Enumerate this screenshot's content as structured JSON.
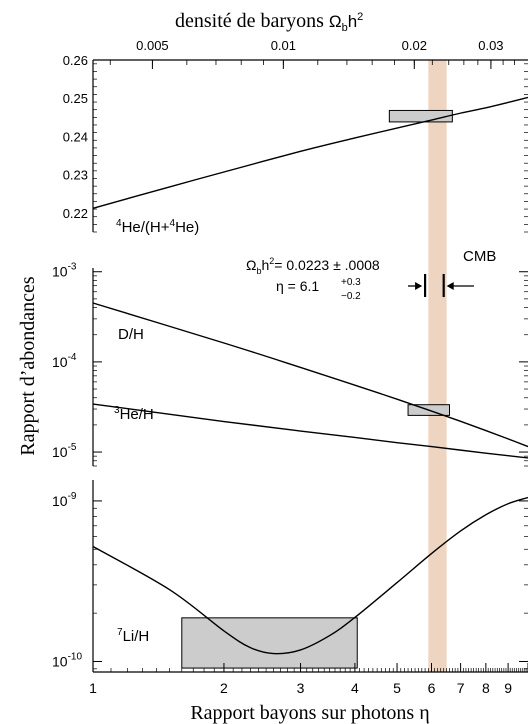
{
  "chart_data": {
    "type": "line",
    "top_axis": {
      "label_prefix": "densité de baryons",
      "label_symbol": "Ω",
      "label_sub": "b",
      "label_h": "h",
      "label_sup": "2",
      "ticks": [
        "0.005",
        "0.01",
        "0.02",
        "0.03"
      ],
      "tick_values": [
        0.005,
        0.01,
        0.02,
        0.03
      ]
    },
    "x_axis": {
      "label": "Rapport bayons sur photons η",
      "scale": "log",
      "range": [
        1,
        10
      ],
      "tick_values": [
        1,
        2,
        3,
        4,
        5,
        6,
        7,
        8,
        9
      ],
      "tick_labels": [
        "1",
        "2",
        "3",
        "4",
        "5",
        "6",
        "7",
        "8",
        "9"
      ]
    },
    "y_axis_label": "Rapport d’abondances",
    "cmb_band": {
      "range": [
        5.9,
        6.5
      ],
      "color": "#eed5c1"
    },
    "cmb_label": "CMB",
    "annotation": {
      "omega_text": "h",
      "omega_value": "= 0.0223 ± .0008",
      "eta_text": "η = 6.1",
      "eta_plus": "+0.3",
      "eta_minus": "−0.2"
    },
    "panels": [
      {
        "name": "helium-4",
        "scale": "linear",
        "ylim": [
          0.215,
          0.26
        ],
        "tick_values": [
          0.22,
          0.23,
          0.24,
          0.25,
          0.26
        ],
        "tick_labels": [
          "0.22",
          "0.23",
          "0.24",
          "0.25",
          "0.26"
        ],
        "series": [
          {
            "label_sup1": "4",
            "label_mid1": "He/(H+",
            "label_sup2": "4",
            "label_end": "He)",
            "x": [
              1,
              1.5,
              2,
              3,
              4,
              5,
              6,
              7,
              8,
              9,
              10
            ],
            "y": [
              0.2212,
              0.2268,
              0.2307,
              0.2361,
              0.2396,
              0.2422,
              0.2443,
              0.2461,
              0.2475,
              0.2489,
              0.2502
            ]
          }
        ],
        "obs_box": {
          "x": [
            4.8,
            6.7
          ],
          "y": [
            0.2438,
            0.2468
          ]
        }
      },
      {
        "name": "deuterium-helium-3",
        "scale": "log",
        "ylim": [
          7e-06,
          0.0011
        ],
        "tick_values": [
          1e-05,
          0.0001,
          0.001
        ],
        "tick_labels_base": [
          "10",
          "10",
          "10"
        ],
        "tick_labels_exp": [
          "-5",
          "-4",
          "-3"
        ],
        "series": [
          {
            "label": "D/H",
            "x": [
              1,
              2,
              3,
              4,
              5,
              6,
              7,
              8,
              9,
              10
            ],
            "y": [
              0.00045,
              0.000162,
              8.68e-05,
              5.52e-05,
              3.86e-05,
              2.85e-05,
              2.19e-05,
              1.73e-05,
              1.4e-05,
              1.15e-05
            ]
          },
          {
            "label_sup": "3",
            "label": "He/H",
            "x": [
              1,
              2,
              3,
              4,
              5,
              6,
              7,
              8,
              9,
              10
            ],
            "y": [
              3.41e-05,
              2.18e-05,
              1.71e-05,
              1.45e-05,
              1.27e-05,
              1.15e-05,
              1.05e-05,
              9.7e-06,
              9.1e-06,
              8.6e-06
            ]
          }
        ],
        "obs_box": {
          "x": [
            5.3,
            6.6
          ],
          "y": [
            2.55e-05,
            3.35e-05
          ]
        }
      },
      {
        "name": "lithium-7",
        "scale": "log",
        "ylim": [
          8.6e-11,
          1.35e-09
        ],
        "tick_values": [
          1e-10,
          1e-09
        ],
        "tick_labels_base": [
          "10",
          "10"
        ],
        "tick_labels_exp": [
          "-10",
          "-9"
        ],
        "series": [
          {
            "label_sup": "7",
            "label": "Li/H",
            "x": [
              1,
              1.5,
              2,
              2.3,
              2.6,
              3,
              3.5,
              4,
              5,
              6,
              7,
              8,
              9,
              10
            ],
            "y": [
              5.2e-10,
              2.8e-10,
              1.55e-10,
              1.22e-10,
              1.12e-10,
              1.18e-10,
              1.45e-10,
              1.88e-10,
              3.1e-10,
              4.7e-10,
              6.5e-10,
              8.2e-10,
              9.6e-10,
              1.05e-09
            ]
          }
        ],
        "obs_box": {
          "x": [
            1.6,
            4.05
          ],
          "y": [
            9.1e-11,
            1.87e-10
          ]
        }
      }
    ]
  }
}
